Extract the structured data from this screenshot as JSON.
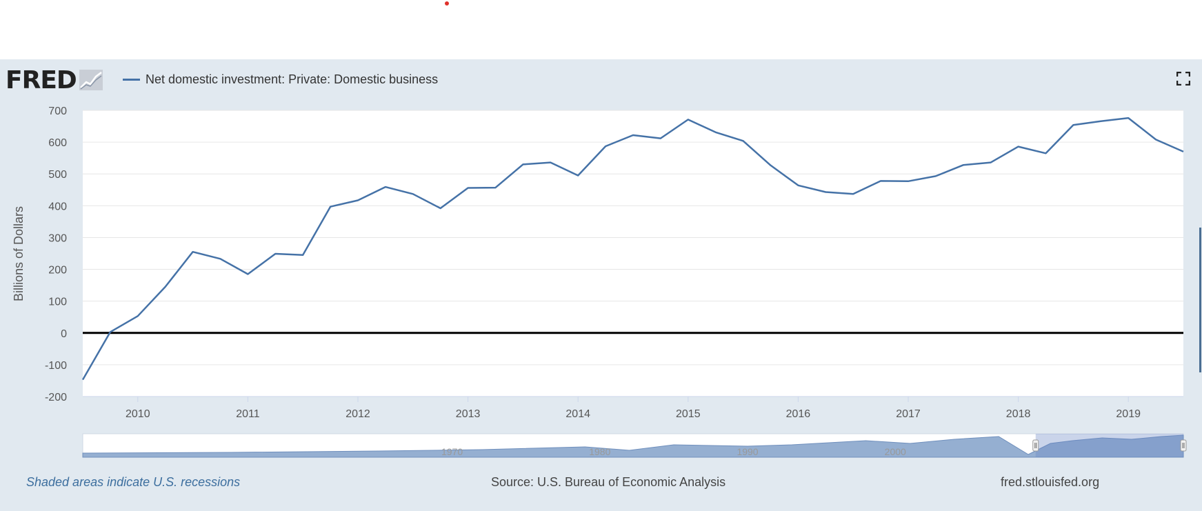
{
  "brand": {
    "logo_text": "FRED",
    "logo_icon": "chart-trend-icon"
  },
  "legend": {
    "label": "Net domestic investment: Private: Domestic business",
    "color": "#4572a7"
  },
  "footer": {
    "recession_note": "Shaded areas indicate U.S. recessions",
    "source": "Source: U.S. Bureau of Economic Analysis",
    "site": "fred.stlouisfed.org"
  },
  "chart_data": {
    "type": "line",
    "title": "",
    "xlabel": "",
    "ylabel": "Billions of Dollars",
    "ylim": [
      -200,
      700
    ],
    "xlim": [
      2009.5,
      2019.5
    ],
    "yticks": [
      -200,
      -100,
      0,
      100,
      200,
      300,
      400,
      500,
      600,
      700
    ],
    "ytick_labels": [
      "-200",
      "-100",
      "0",
      "100",
      "200",
      "300",
      "400",
      "500",
      "600",
      "700"
    ],
    "xticks": [
      2010,
      2011,
      2012,
      2013,
      2014,
      2015,
      2016,
      2017,
      2018,
      2019
    ],
    "xtick_labels": [
      "2010",
      "2011",
      "2012",
      "2013",
      "2014",
      "2015",
      "2016",
      "2017",
      "2018",
      "2019"
    ],
    "grid": true,
    "zero_line": true,
    "series": [
      {
        "name": "Net domestic investment: Private: Domestic business",
        "color": "#4572a7",
        "x": [
          2009.5,
          2009.75,
          2010.0,
          2010.25,
          2010.5,
          2010.75,
          2011.0,
          2011.25,
          2011.5,
          2011.75,
          2012.0,
          2012.25,
          2012.5,
          2012.75,
          2013.0,
          2013.25,
          2013.5,
          2013.75,
          2014.0,
          2014.25,
          2014.5,
          2014.75,
          2015.0,
          2015.25,
          2015.5,
          2015.75,
          2016.0,
          2016.25,
          2016.5,
          2016.75,
          2017.0,
          2017.25,
          2017.5,
          2017.75,
          2018.0,
          2018.25,
          2018.5,
          2018.75,
          2019.0,
          2019.25,
          2019.5
        ],
        "values": [
          -147,
          3,
          53,
          145,
          255,
          233,
          185,
          249,
          245,
          397,
          417,
          459,
          437,
          392,
          456,
          457,
          530,
          536,
          495,
          587,
          622,
          612,
          671,
          631,
          604,
          527,
          464,
          443,
          437,
          478,
          477,
          493,
          528,
          536,
          586,
          565,
          654,
          666,
          676,
          608,
          570
        ]
      }
    ],
    "navigator": {
      "axis_labels": [
        "1970",
        "1980",
        "1990",
        "2000"
      ],
      "selection": [
        2009.5,
        2019.5
      ]
    }
  }
}
